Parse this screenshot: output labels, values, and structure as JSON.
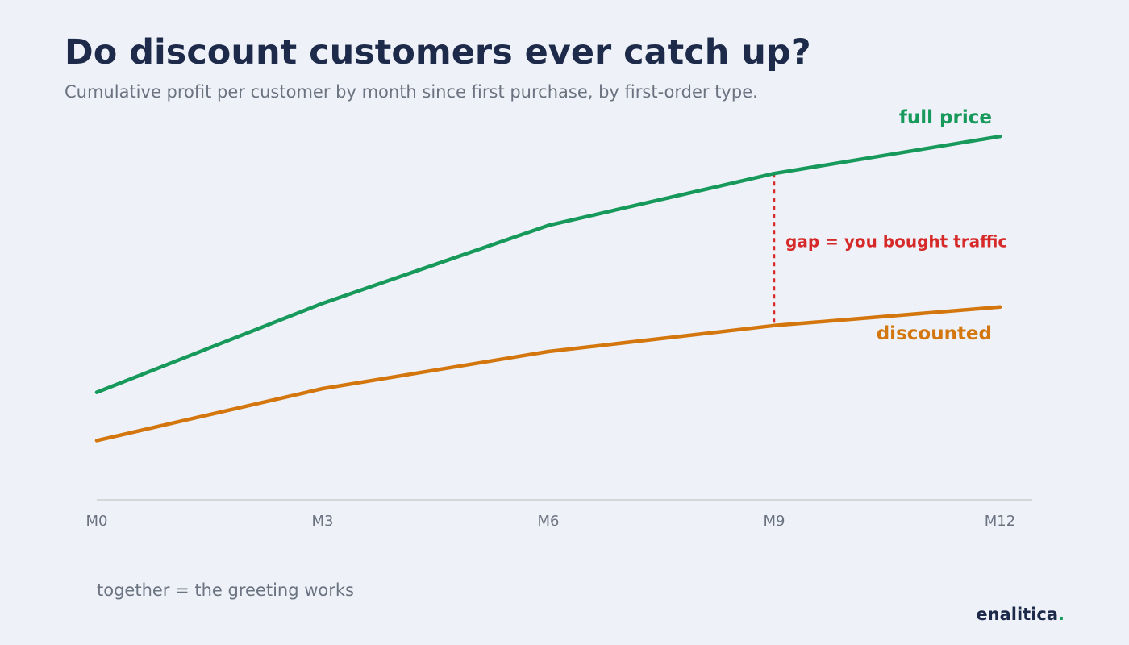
{
  "header": {
    "title": "Do discount customers ever catch up?",
    "subtitle": "Cumulative profit per customer by month since first purchase, by first-order type."
  },
  "chart_data": {
    "type": "line",
    "categories": [
      "M0",
      "M3",
      "M6",
      "M9",
      "M12"
    ],
    "ylim": [
      0,
      100
    ],
    "grid": false,
    "series": [
      {
        "name": "full price",
        "color": "#16995a",
        "values": [
          29,
          53,
          74,
          88,
          98
        ]
      },
      {
        "name": "discounted",
        "color": "#d4760e",
        "values": [
          16,
          30,
          40,
          47,
          52
        ]
      }
    ],
    "annotation": {
      "label": "gap = you bought traffic",
      "at_category": "M9",
      "color": "#d62a2a"
    }
  },
  "footer": {
    "note": "together = the greeting works",
    "brand_name": "enalitica",
    "brand_dot": "."
  }
}
